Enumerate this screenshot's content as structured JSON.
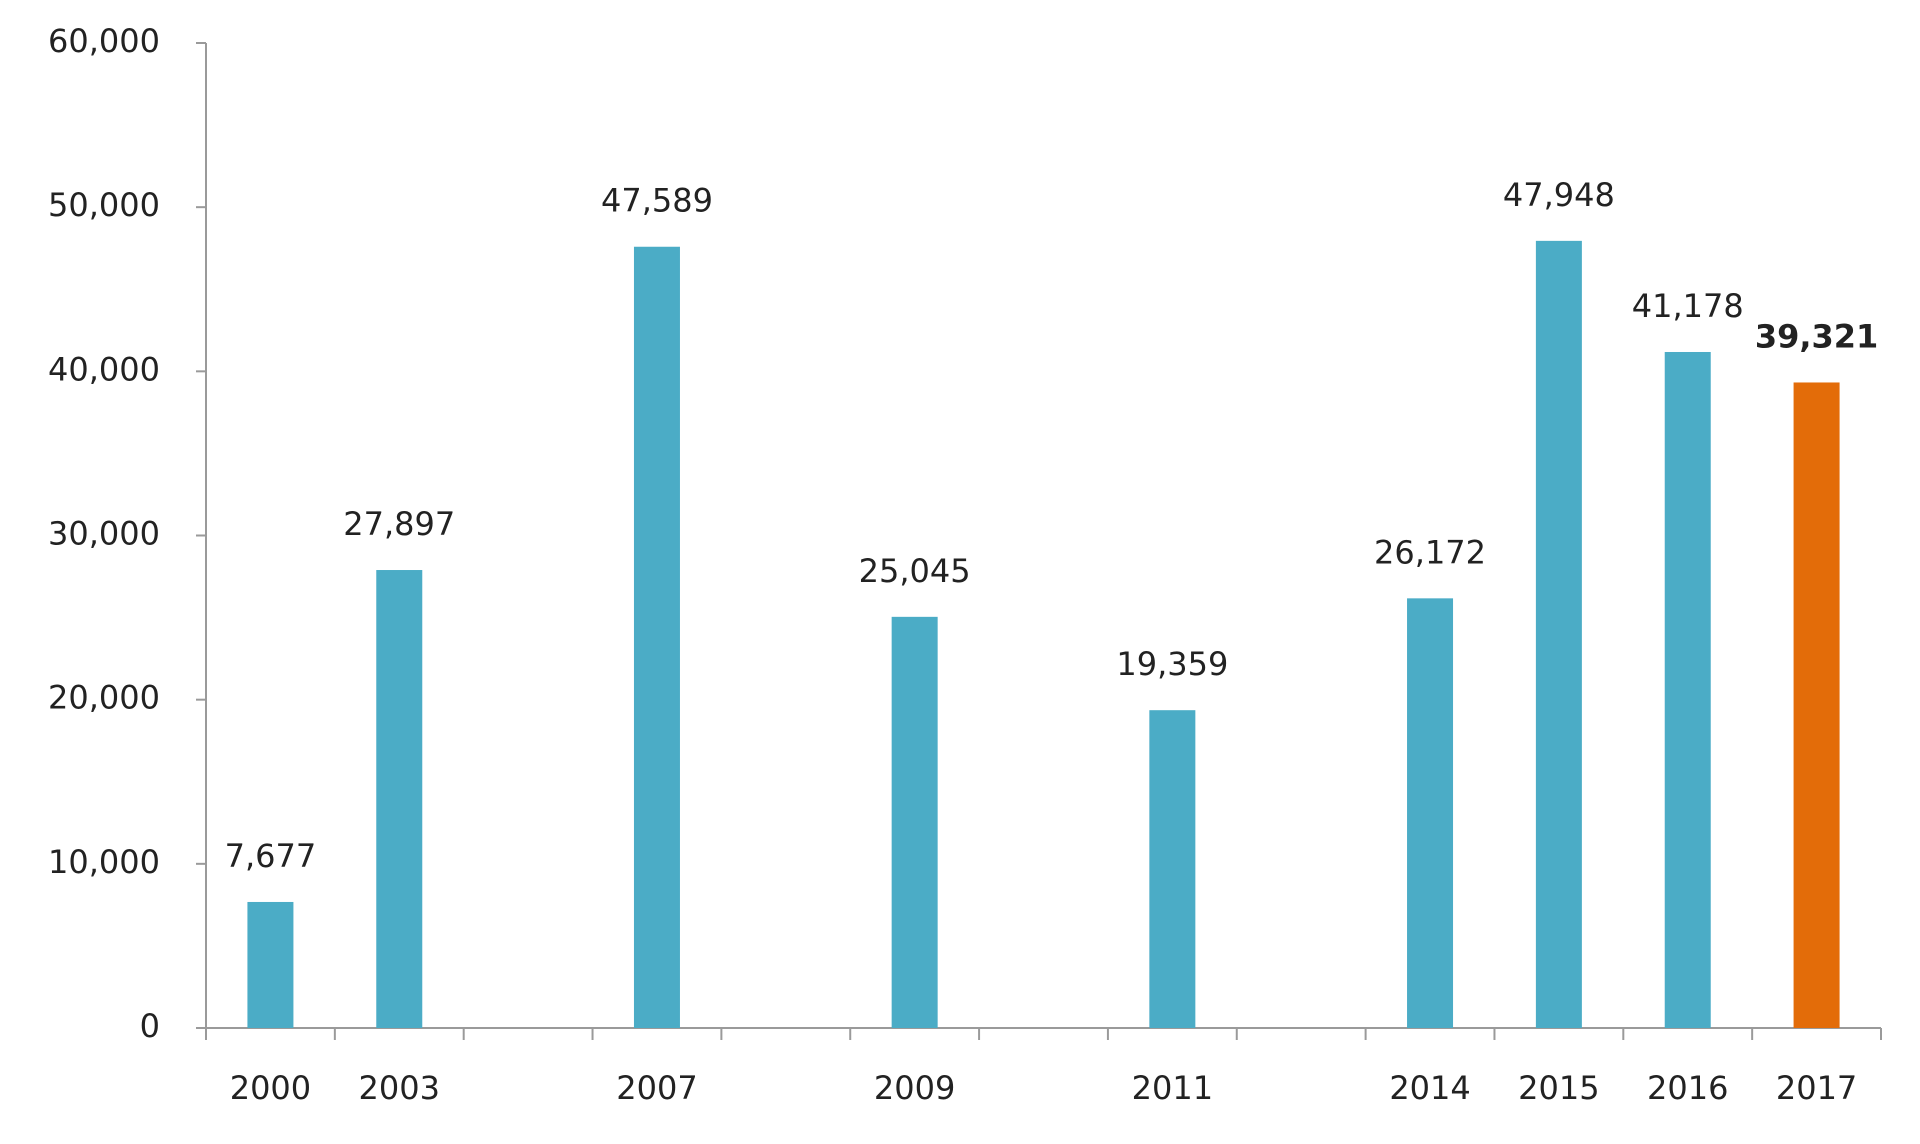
{
  "chart_data": {
    "type": "bar",
    "categories": [
      "2000",
      "2003",
      null,
      "2007",
      null,
      "2009",
      null,
      "2011",
      null,
      "2014",
      "2015",
      "2016",
      "2017"
    ],
    "values": [
      7677,
      27897,
      null,
      47589,
      null,
      25045,
      null,
      19359,
      null,
      26172,
      47948,
      41178,
      39321
    ],
    "value_labels": [
      "7,677",
      "27,897",
      null,
      "47,589",
      null,
      "25,045",
      null,
      "19,359",
      null,
      "26,172",
      "47,948",
      "41,178",
      "39,321"
    ],
    "colors": [
      "#4bacc6",
      "#4bacc6",
      null,
      "#4bacc6",
      null,
      "#4bacc6",
      null,
      "#4bacc6",
      null,
      "#4bacc6",
      "#4bacc6",
      "#4bacc6",
      "#e36c09"
    ],
    "ylim": [
      0,
      60000
    ],
    "yticks": [
      0,
      {
        "value": 10000,
        "label": "10,000"
      },
      {
        "value": 20000,
        "label": "20,000"
      },
      {
        "value": 30000,
        "label": "30,000"
      },
      {
        "value": 40000,
        "label": "40,000"
      },
      {
        "value": 50000,
        "label": "50,000"
      },
      {
        "value": 60000,
        "label": "60,000"
      }
    ],
    "grid": false
  }
}
